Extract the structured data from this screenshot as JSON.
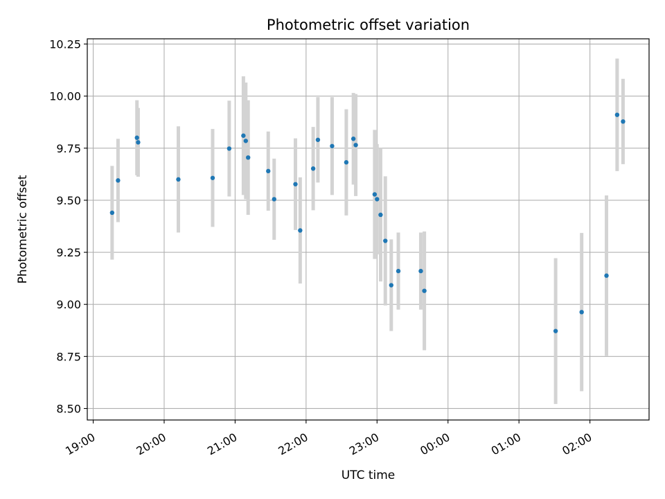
{
  "chart_data": {
    "type": "scatter",
    "title": "Photometric offset variation",
    "xlabel": "UTC time",
    "ylabel": "Photometric offset",
    "grid": true,
    "xlim": [
      "18:55",
      "02:50"
    ],
    "ylim": [
      8.445,
      10.275
    ],
    "x_ticks": [
      "19:00",
      "20:00",
      "21:00",
      "22:00",
      "23:00",
      "00:00",
      "01:00",
      "02:00"
    ],
    "y_ticks": [
      "8.50",
      "8.75",
      "9.00",
      "9.25",
      "9.50",
      "9.75",
      "10.00",
      "10.25"
    ],
    "colors": {
      "marker": "#1f77b4",
      "errorbar": "#d3d3d3",
      "grid": "#b0b0b0"
    },
    "points": [
      {
        "x": "19:16",
        "y": 9.44,
        "err": 0.225
      },
      {
        "x": "19:21",
        "y": 9.595,
        "err": 0.2
      },
      {
        "x": "19:37",
        "y": 9.8,
        "err": 0.18
      },
      {
        "x": "19:38",
        "y": 9.778,
        "err": 0.165
      },
      {
        "x": "20:12",
        "y": 9.6,
        "err": 0.255
      },
      {
        "x": "20:41",
        "y": 9.607,
        "err": 0.235
      },
      {
        "x": "20:55",
        "y": 9.748,
        "err": 0.23
      },
      {
        "x": "21:07",
        "y": 9.81,
        "err": 0.285
      },
      {
        "x": "21:09",
        "y": 9.785,
        "err": 0.28
      },
      {
        "x": "21:11",
        "y": 9.705,
        "err": 0.275
      },
      {
        "x": "21:28",
        "y": 9.64,
        "err": 0.19
      },
      {
        "x": "21:33",
        "y": 9.505,
        "err": 0.195
      },
      {
        "x": "21:51",
        "y": 9.577,
        "err": 0.22
      },
      {
        "x": "21:55",
        "y": 9.355,
        "err": 0.255
      },
      {
        "x": "22:06",
        "y": 9.652,
        "err": 0.2
      },
      {
        "x": "22:10",
        "y": 9.79,
        "err": 0.205
      },
      {
        "x": "22:22",
        "y": 9.76,
        "err": 0.235
      },
      {
        "x": "22:34",
        "y": 9.682,
        "err": 0.255
      },
      {
        "x": "22:40",
        "y": 9.795,
        "err": 0.22
      },
      {
        "x": "22:42",
        "y": 9.765,
        "err": 0.245
      },
      {
        "x": "22:58",
        "y": 9.528,
        "err": 0.31
      },
      {
        "x": "23:00",
        "y": 9.505,
        "err": 0.265
      },
      {
        "x": "23:03",
        "y": 9.43,
        "err": 0.32
      },
      {
        "x": "23:07",
        "y": 9.305,
        "err": 0.31
      },
      {
        "x": "23:12",
        "y": 9.092,
        "err": 0.22
      },
      {
        "x": "23:18",
        "y": 9.16,
        "err": 0.185
      },
      {
        "x": "23:37",
        "y": 9.16,
        "err": 0.185
      },
      {
        "x": "23:40",
        "y": 9.065,
        "err": 0.285
      },
      {
        "x": "01:31",
        "y": 8.872,
        "err": 0.35
      },
      {
        "x": "01:53",
        "y": 8.963,
        "err": 0.38
      },
      {
        "x": "02:14",
        "y": 9.138,
        "err": 0.385
      },
      {
        "x": "02:23",
        "y": 9.91,
        "err": 0.27
      },
      {
        "x": "02:28",
        "y": 9.878,
        "err": 0.205
      }
    ]
  }
}
